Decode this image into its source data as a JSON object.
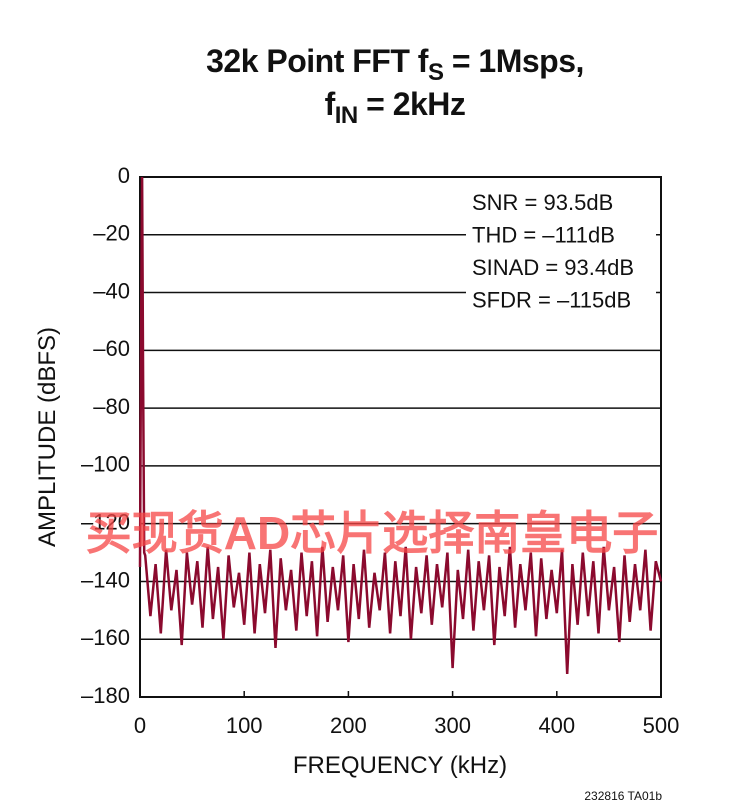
{
  "chart_data": {
    "type": "line",
    "title": [
      [
        "32k Point FFT f",
        "S",
        " = 1Msps,"
      ],
      [
        "f",
        "IN",
        " = 2kHz"
      ]
    ],
    "xlabel": "FREQUENCY (kHz)",
    "ylabel": "AMPLITUDE (dBFS)",
    "annotations": [
      "SNR = 93.5dB",
      "THD = –111dB",
      "SINAD = 93.4dB",
      "SFDR = –115dB"
    ],
    "watermark": "买现货AD芯片选择南皇电子",
    "footnote": "232816 TA01b",
    "xlim": [
      0,
      500
    ],
    "xticks": [
      0,
      100,
      200,
      300,
      400,
      500
    ],
    "ylim": [
      -180,
      0
    ],
    "yticks": [
      0,
      {
        "value": -20,
        "label": "–20"
      },
      {
        "value": -40,
        "label": "–40"
      },
      {
        "value": -60,
        "label": "–60"
      },
      {
        "value": -80,
        "label": "–80"
      },
      {
        "value": -100,
        "label": "–100"
      },
      {
        "value": -120,
        "label": "–120"
      },
      {
        "value": -140,
        "label": "–140"
      },
      {
        "value": -160,
        "label": "–160"
      },
      {
        "value": -180,
        "label": "–180"
      }
    ],
    "grid": true,
    "series": [
      {
        "color": "#8b0a2e",
        "x": [
          0,
          1,
          2,
          3,
          4,
          5,
          10,
          15,
          20,
          25,
          30,
          35,
          40,
          45,
          50,
          55,
          60,
          65,
          70,
          75,
          80,
          85,
          90,
          95,
          100,
          105,
          110,
          115,
          120,
          125,
          130,
          135,
          140,
          145,
          150,
          155,
          160,
          165,
          170,
          175,
          180,
          185,
          190,
          195,
          200,
          205,
          210,
          215,
          220,
          225,
          230,
          235,
          240,
          245,
          250,
          255,
          260,
          265,
          270,
          275,
          280,
          285,
          290,
          295,
          300,
          305,
          310,
          315,
          320,
          325,
          330,
          335,
          340,
          345,
          350,
          355,
          360,
          365,
          370,
          375,
          380,
          385,
          390,
          395,
          400,
          405,
          410,
          415,
          420,
          425,
          430,
          435,
          440,
          445,
          450,
          455,
          460,
          465,
          470,
          475,
          480,
          485,
          490,
          495,
          500
        ],
        "values": [
          -135,
          -60,
          0,
          -70,
          -130,
          -131,
          -152,
          -134,
          -158,
          -129,
          -150,
          -136,
          -162,
          -130,
          -148,
          -133,
          -156,
          -128,
          -153,
          -135,
          -160,
          -131,
          -149,
          -137,
          -155,
          -130,
          -158,
          -134,
          -151,
          -129,
          -163,
          -132,
          -150,
          -136,
          -157,
          -130,
          -152,
          -133,
          -159,
          -128,
          -154,
          -135,
          -150,
          -131,
          -161,
          -134,
          -153,
          -129,
          -156,
          -137,
          -150,
          -130,
          -158,
          -133,
          -152,
          -128,
          -160,
          -135,
          -151,
          -131,
          -155,
          -134,
          -149,
          -130,
          -170,
          -136,
          -153,
          -129,
          -157,
          -133,
          -150,
          -131,
          -162,
          -135,
          -152,
          -128,
          -156,
          -134,
          -150,
          -130,
          -159,
          -132,
          -153,
          -136,
          -151,
          -129,
          -172,
          -134,
          -155,
          -130,
          -152,
          -133,
          -158,
          -128,
          -150,
          -135,
          -161,
          -131,
          -154,
          -134,
          -150,
          -129,
          -157,
          -133,
          -140
        ]
      }
    ]
  }
}
